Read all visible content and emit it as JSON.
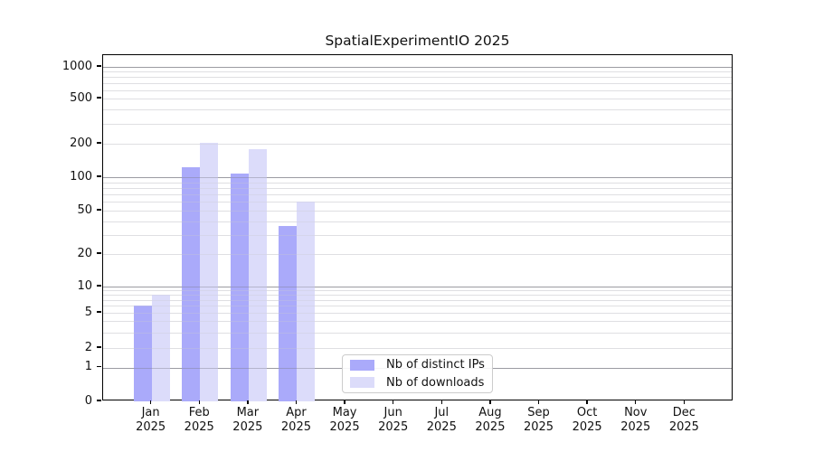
{
  "chart_data": {
    "type": "bar",
    "title": "SpatialExperimentIO 2025",
    "x_year": "2025",
    "categories": [
      "Jan",
      "Feb",
      "Mar",
      "Apr",
      "May",
      "Jun",
      "Jul",
      "Aug",
      "Sep",
      "Oct",
      "Nov",
      "Dec"
    ],
    "series": [
      {
        "name": "Nb of distinct IPs",
        "color": "#aaaafa",
        "values": [
          6,
          123,
          107,
          36,
          0,
          0,
          0,
          0,
          0,
          0,
          0,
          0
        ]
      },
      {
        "name": "Nb of downloads",
        "color": "#dcdcfa",
        "values": [
          8,
          203,
          180,
          60,
          0,
          0,
          0,
          0,
          0,
          0,
          0,
          0
        ]
      }
    ],
    "y_ticks": [
      0,
      1,
      2,
      5,
      10,
      20,
      50,
      100,
      200,
      500,
      1000
    ],
    "y_scale": "log-like",
    "ylim": [
      0,
      1000
    ],
    "grid": "horizontal, major at powers of 10, minor at 2-9 multiples",
    "legend_position": "inside bottom-center",
    "colors": {
      "bar_dark": "#aaaafa",
      "bar_light": "#dcdcfa",
      "major_grid": "#b4b4b4",
      "minor_grid": "#ececec",
      "axis": "#000000",
      "text": "#111111"
    }
  }
}
